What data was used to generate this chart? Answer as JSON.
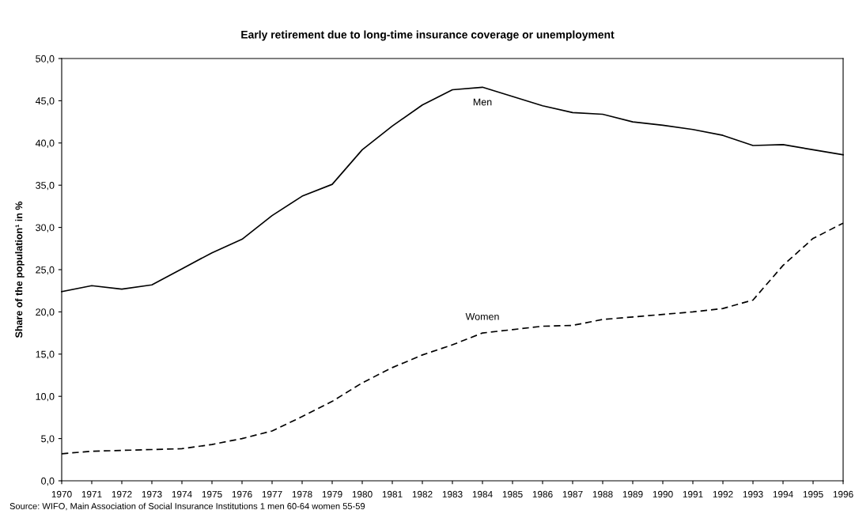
{
  "chart_data": {
    "type": "line",
    "title": "Early retirement due to long-time insurance coverage or unemployment",
    "ylabel": "Share of the population¹ in %",
    "x": [
      1970,
      1971,
      1972,
      1973,
      1974,
      1975,
      1976,
      1977,
      1978,
      1979,
      1980,
      1981,
      1982,
      1983,
      1984,
      1985,
      1986,
      1987,
      1988,
      1989,
      1990,
      1991,
      1992,
      1993,
      1994,
      1995,
      1996
    ],
    "series": [
      {
        "name": "Men",
        "color": "#000000",
        "line_style": "solid",
        "values": [
          22.4,
          23.1,
          22.7,
          23.2,
          25.1,
          27.0,
          28.6,
          31.4,
          33.7,
          35.1,
          39.2,
          42.0,
          44.5,
          46.3,
          46.6,
          45.5,
          44.4,
          43.6,
          43.4,
          42.5,
          42.1,
          41.6,
          40.9,
          39.7,
          39.8,
          39.2,
          38.6
        ]
      },
      {
        "name": "Women",
        "color": "#000000",
        "line_style": "dashed",
        "values": [
          3.2,
          3.5,
          3.6,
          3.7,
          3.8,
          4.3,
          5.0,
          5.9,
          7.6,
          9.4,
          11.6,
          13.4,
          14.9,
          16.1,
          17.5,
          17.9,
          18.3,
          18.4,
          19.1,
          19.4,
          19.7,
          20.0,
          20.4,
          21.4,
          25.5,
          28.7,
          30.5
        ]
      }
    ],
    "xlim": [
      1970,
      1996
    ],
    "xticks": [
      1970,
      1971,
      1972,
      1973,
      1974,
      1975,
      1976,
      1977,
      1978,
      1979,
      1980,
      1981,
      1982,
      1983,
      1984,
      1985,
      1986,
      1987,
      1988,
      1989,
      1990,
      1991,
      1992,
      1993,
      1994,
      1995,
      1996
    ],
    "ylim": [
      0,
      50
    ],
    "yticks": [
      {
        "value": 0,
        "label": "0,0"
      },
      {
        "value": 5,
        "label": "5,0"
      },
      {
        "value": 10,
        "label": "10,0"
      },
      {
        "value": 15,
        "label": "15,0"
      },
      {
        "value": 20,
        "label": "20,0"
      },
      {
        "value": 25,
        "label": "25,0"
      },
      {
        "value": 30,
        "label": "30,0"
      },
      {
        "value": 35,
        "label": "35,0"
      },
      {
        "value": 40,
        "label": "40,0"
      },
      {
        "value": 45,
        "label": "45,0"
      },
      {
        "value": 50,
        "label": "50,0"
      }
    ],
    "grid": false,
    "legend": false,
    "annotations": [
      "Source: WIFO, Main Association of Social Insurance Institutions 1 men 60-64 women 55-59"
    ]
  }
}
